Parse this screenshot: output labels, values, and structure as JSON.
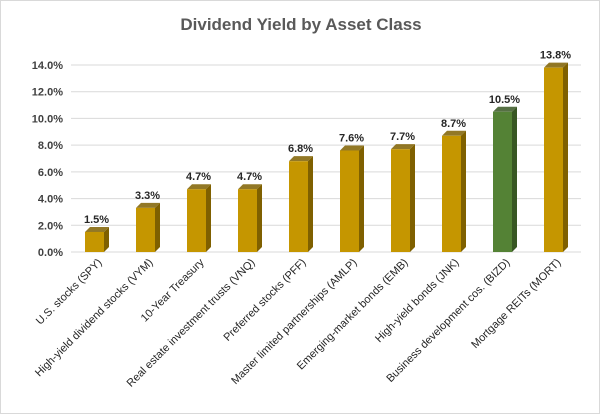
{
  "chart_data": {
    "type": "bar",
    "title": "Dividend Yield by Asset Class",
    "xlabel": "",
    "ylabel": "",
    "ylim": [
      0,
      14
    ],
    "y_tick_step": 2,
    "y_tick_labels": [
      "0.0%",
      "2.0%",
      "4.0%",
      "6.0%",
      "8.0%",
      "10.0%",
      "12.0%",
      "14.0%"
    ],
    "grid": true,
    "legend": "none",
    "categories": [
      "U.S. stocks (SPY)",
      "High-yield dividend stocks (VYM)",
      "10-Year Treasury",
      "Real estate investment trusts (VNQ)",
      "Preferred stocks (PFF)",
      "Master limited partnerships (AMLP)",
      "Emerging-market bonds (EMB)",
      "High-yield bonds (JNK)",
      "Business development cos. (BIZD)",
      "Mortgage REITs (MORT)"
    ],
    "values": [
      1.5,
      3.3,
      4.7,
      4.7,
      6.8,
      7.6,
      7.7,
      8.7,
      10.5,
      13.8
    ],
    "data_labels": [
      "1.5%",
      "3.3%",
      "4.7%",
      "4.7%",
      "6.8%",
      "7.6%",
      "7.7%",
      "8.7%",
      "10.5%",
      "13.8%"
    ],
    "bar_colors": [
      "#c59600",
      "#c59600",
      "#c59600",
      "#c59600",
      "#c59600",
      "#c59600",
      "#c59600",
      "#c59600",
      "#548235",
      "#c59600"
    ],
    "bar_side_colors": [
      "#7f6000",
      "#7f6000",
      "#7f6000",
      "#7f6000",
      "#7f6000",
      "#7f6000",
      "#7f6000",
      "#7f6000",
      "#385723",
      "#7f6000"
    ]
  }
}
